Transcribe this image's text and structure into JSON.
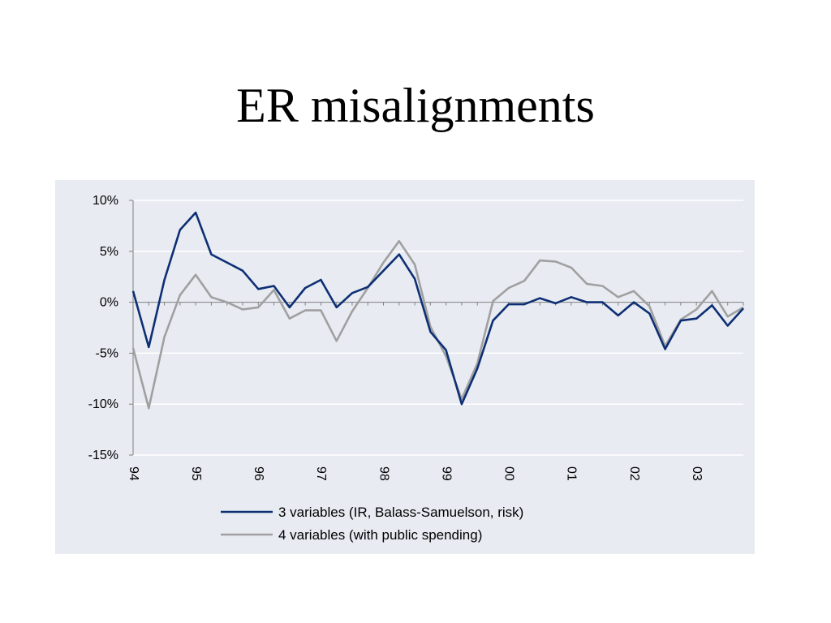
{
  "slide": {
    "title": "ER misalignments"
  },
  "colors": {
    "panel_background": "#e8ebf2",
    "gridline": "#ffffff",
    "axis": "#808080",
    "series_3var": "#0d2f73",
    "series_4var": "#a0a0a0"
  },
  "chart_data": {
    "type": "line",
    "title": "",
    "xlabel": "",
    "ylabel": "",
    "x_tick_labels": [
      "94",
      "95",
      "96",
      "97",
      "98",
      "99",
      "00",
      "01",
      "02",
      "03"
    ],
    "x_tick_positions": [
      1994.0,
      1995.0,
      1996.0,
      1997.0,
      1998.0,
      1999.0,
      2000.0,
      2001.0,
      2002.0,
      2003.0
    ],
    "x_range": [
      1994.0,
      2003.75
    ],
    "y_tick_labels": [
      "10%",
      "5%",
      "0%",
      "-5%",
      "-10%",
      "-15%"
    ],
    "y_ticks": [
      10,
      5,
      0,
      -5,
      -10,
      -15
    ],
    "ylim": [
      -15,
      10
    ],
    "y_unit": "%",
    "grid": true,
    "legend_position": "bottom",
    "x": [
      1994.0,
      1994.25,
      1994.5,
      1994.75,
      1995.0,
      1995.25,
      1995.5,
      1995.75,
      1996.0,
      1996.25,
      1996.5,
      1996.75,
      1997.0,
      1997.25,
      1997.5,
      1997.75,
      1998.0,
      1998.25,
      1998.5,
      1998.75,
      1999.0,
      1999.25,
      1999.5,
      1999.75,
      2000.0,
      2000.25,
      2000.5,
      2000.75,
      2001.0,
      2001.25,
      2001.5,
      2001.75,
      2002.0,
      2002.25,
      2002.5,
      2002.75,
      2003.0,
      2003.25,
      2003.5,
      2003.75
    ],
    "series": [
      {
        "name": "3 variables (IR, Balass-Samuelson, risk)",
        "values": [
          1.1,
          -4.4,
          2.2,
          7.1,
          8.8,
          4.7,
          3.9,
          3.1,
          1.3,
          1.6,
          -0.5,
          1.4,
          2.2,
          -0.5,
          0.9,
          1.5,
          3.1,
          4.7,
          2.3,
          -2.9,
          -4.7,
          -10.0,
          -6.5,
          -1.8,
          -0.2,
          -0.2,
          0.4,
          -0.1,
          0.5,
          0.0,
          0.0,
          -1.3,
          0.0,
          -1.1,
          -4.6,
          -1.8,
          -1.6,
          -0.3,
          -2.3,
          -0.6
        ]
      },
      {
        "name": "4 variables (with public spending)",
        "values": [
          -4.5,
          -10.4,
          -3.4,
          0.7,
          2.7,
          0.5,
          0.0,
          -0.7,
          -0.5,
          1.2,
          -1.6,
          -0.8,
          -0.8,
          -3.8,
          -0.9,
          1.4,
          3.9,
          6.0,
          3.7,
          -2.4,
          -5.3,
          -9.5,
          -6.0,
          0.1,
          1.4,
          2.1,
          4.1,
          4.0,
          3.4,
          1.8,
          1.6,
          0.5,
          1.1,
          -0.4,
          -4.3,
          -1.7,
          -0.7,
          1.1,
          -1.4,
          -0.5
        ]
      }
    ]
  }
}
